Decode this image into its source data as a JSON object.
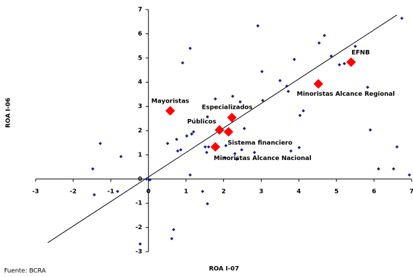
{
  "chart_data": {
    "type": "scatter",
    "xlabel": "ROA I-07",
    "ylabel": "ROA I-06",
    "source": "Fuente: BCRA",
    "xlim": [
      -3,
      7
    ],
    "ylim": [
      -3,
      7
    ],
    "xticks": [
      -3,
      -2,
      -1,
      0,
      1,
      2,
      3,
      4,
      5,
      6,
      7
    ],
    "yticks": [
      -3,
      -2,
      -1,
      0,
      1,
      2,
      3,
      4,
      5,
      6,
      7
    ],
    "series": [
      {
        "color": "#1a1a8c",
        "x": [
          2.91,
          6.74,
          4.68,
          4.54,
          5.5,
          4.86,
          5.08,
          5.21,
          0.91,
          1.11,
          3.02,
          3.88,
          3.5,
          3.68,
          5.83,
          2.24,
          1.78,
          2.44,
          3.04,
          3.72,
          4.12,
          4.03,
          1.57,
          2.55,
          1.2,
          5.9,
          1.15,
          1.02,
          0.75,
          0.86,
          1.51,
          1.6,
          2.06,
          0.78,
          0.51,
          4.01,
          3.79,
          2.82,
          2.3,
          2.48,
          2.04,
          2.35,
          1.55,
          6.61,
          -1.28,
          -0.73,
          -1.48,
          6.12,
          6.52,
          6.94,
          1.11,
          -0.05,
          0.04,
          -1.44,
          -0.82,
          1.44,
          1.57,
          0.67,
          0.62,
          -0.22
        ],
        "values": [
          6.33,
          6.64,
          5.93,
          5.62,
          5.48,
          5.08,
          4.72,
          4.77,
          4.8,
          5.4,
          4.44,
          4.94,
          4.07,
          3.84,
          3.79,
          3.42,
          3.31,
          3.19,
          3.25,
          3.62,
          2.82,
          2.63,
          2.57,
          2.09,
          1.95,
          2.03,
          1.86,
          1.78,
          1.64,
          1.21,
          1.33,
          1.33,
          1.38,
          1.16,
          1.47,
          1.3,
          1.16,
          1.1,
          1.05,
          1.21,
          0.88,
          0.82,
          1.1,
          1.33,
          1.47,
          0.93,
          0.42,
          0.42,
          0.42,
          0.17,
          0.17,
          0.0,
          -0.03,
          -0.65,
          -0.51,
          -0.51,
          -1.02,
          -2.09,
          -2.46,
          -2.68
        ]
      },
      {
        "color": "#ff0000",
        "x": [
          0.58,
          2.22,
          1.89,
          2.13,
          1.78,
          4.52,
          5.39
        ],
        "values": [
          2.82,
          2.54,
          2.03,
          1.95,
          1.33,
          3.93,
          4.83
        ],
        "labels": [
          "Mayoristas",
          "Especializados",
          "Públicos",
          "Sistema financiero",
          "Minoristas Alcance Nacional",
          "Minoristas Alcance Regional",
          "EFNB"
        ]
      },
      {
        "type": "line",
        "color": "#000000",
        "x": [
          -2.68,
          6.61
        ],
        "values": [
          -2.63,
          6.78
        ]
      }
    ]
  }
}
